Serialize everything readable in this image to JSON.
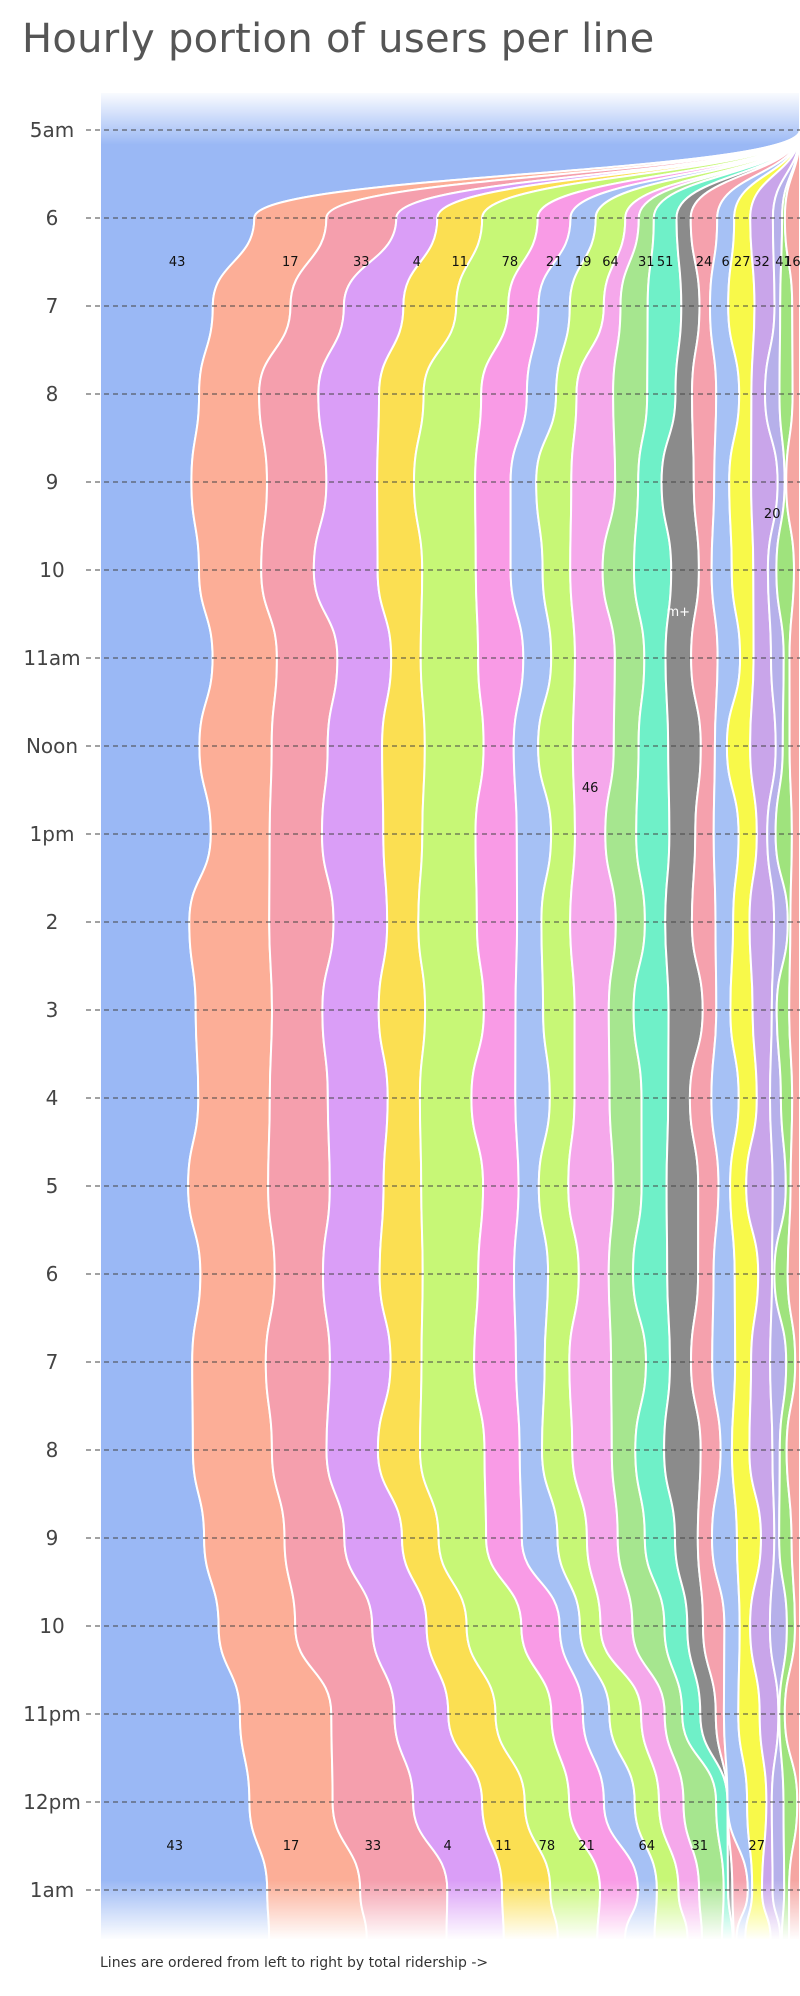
{
  "title": "Hourly portion of users per line",
  "footnote": "Lines are ordered from left to right by total ridership ->",
  "chart_data": {
    "type": "streamgraph",
    "orientation": "vertical",
    "title": "Hourly portion of users per line",
    "hour_labels": [
      "5am",
      "6",
      "7",
      "8",
      "9",
      "10",
      "11am",
      "Noon",
      "1pm",
      "2",
      "3",
      "4",
      "5",
      "6",
      "7",
      "8",
      "9",
      "10",
      "11pm",
      "12pm",
      "1am"
    ],
    "grid_lines": "dashed",
    "series": [
      {
        "name": "43",
        "color": "#9ab8f5",
        "shares": [
          0,
          16,
          12,
          10,
          10,
          10,
          12,
          11,
          11,
          10,
          10,
          10,
          10,
          10,
          10,
          10,
          11,
          14,
          16,
          17,
          20
        ]
      },
      {
        "name": "17",
        "color": "#fcae97",
        "shares": [
          0,
          7,
          8,
          7,
          7,
          7,
          7,
          7,
          7,
          8,
          8,
          8,
          8,
          8,
          8,
          8,
          9,
          9,
          10,
          10,
          11
        ]
      },
      {
        "name": "33",
        "color": "#f59fad",
        "shares": [
          0,
          7,
          6,
          6,
          6,
          6,
          6,
          6,
          6,
          6,
          6,
          6,
          6,
          6,
          6,
          6,
          7,
          8,
          8,
          9,
          10
        ]
      },
      {
        "name": "4",
        "color": "#da9ef7",
        "shares": [
          0,
          5,
          6,
          6,
          6,
          6,
          6,
          6,
          6,
          6,
          6,
          6,
          6,
          6,
          6,
          6,
          6,
          6,
          7,
          7,
          7
        ]
      },
      {
        "name": "11",
        "color": "#fbdf52",
        "shares": [
          0,
          5,
          5,
          5,
          4,
          4,
          4,
          4,
          4,
          4,
          4,
          4,
          4,
          4,
          4,
          4,
          4,
          5,
          5,
          5,
          6
        ]
      },
      {
        "name": "78",
        "color": "#c7f776",
        "shares": [
          0,
          5,
          6,
          6,
          6,
          6,
          6,
          6,
          6,
          6,
          6,
          6,
          6,
          6,
          6,
          6,
          6,
          6,
          6,
          6,
          5
        ]
      },
      {
        "name": "21",
        "color": "#f99be6",
        "shares": [
          0,
          3,
          4,
          4,
          4,
          4,
          4,
          4,
          4,
          4,
          4,
          4,
          4,
          4,
          4,
          4,
          4,
          4,
          4,
          4,
          4
        ]
      },
      {
        "name": "19",
        "color": "#a6c1f5",
        "shares": [
          0,
          3,
          3,
          3,
          3,
          3,
          3,
          3,
          3,
          3,
          3,
          3,
          3,
          3,
          3,
          3,
          3,
          3,
          3,
          3,
          3
        ]
      },
      {
        "name": "64",
        "color": "#c7f776",
        "shares": [
          0,
          3,
          3,
          3,
          3,
          3,
          3,
          3,
          3,
          3,
          3,
          3,
          3,
          3,
          3,
          3,
          3,
          3,
          3,
          3,
          3
        ]
      },
      {
        "name": "46",
        "color": "#f5a8eb",
        "shares": [
          0,
          1,
          2,
          4,
          4,
          4,
          4,
          4,
          4,
          4,
          4,
          4,
          4,
          4,
          4,
          4,
          4,
          3,
          3,
          3,
          2
        ]
      },
      {
        "name": "31",
        "color": "#a6e68f",
        "shares": [
          0,
          2,
          3,
          3,
          3,
          3,
          3,
          3,
          3,
          3,
          3,
          3,
          3,
          3,
          3,
          3,
          3,
          3,
          3,
          3,
          3
        ]
      },
      {
        "name": "51",
        "color": "#6ff0c8",
        "shares": [
          0,
          3,
          3,
          3,
          3,
          3,
          3,
          3,
          3,
          3,
          3,
          3,
          3,
          3,
          3,
          3,
          3,
          3,
          2,
          1,
          1
        ]
      },
      {
        "name": "m+",
        "color": "#8b8b8b",
        "shares": [
          0,
          1,
          2,
          2,
          3,
          3,
          3,
          3,
          3,
          3,
          3,
          3,
          3,
          3,
          3,
          3,
          3,
          2,
          1,
          0,
          0
        ]
      },
      {
        "name": "24",
        "color": "#f5a1ad",
        "shares": [
          0,
          2,
          2,
          2,
          2,
          2,
          2,
          2,
          2,
          2,
          2,
          2,
          2,
          2,
          2,
          2,
          2,
          2,
          1,
          1,
          1
        ]
      },
      {
        "name": "6",
        "color": "#a6c1f5",
        "shares": [
          0,
          2,
          2,
          2,
          2,
          2,
          2,
          2,
          2,
          2,
          2,
          2,
          2,
          2,
          2,
          2,
          2,
          2,
          2,
          2,
          1
        ]
      },
      {
        "name": "27",
        "color": "#f8f94a",
        "shares": [
          0,
          2,
          2,
          2,
          2,
          2,
          2,
          2,
          2,
          2,
          2,
          2,
          2,
          2,
          2,
          2,
          2,
          2,
          2,
          2,
          2
        ]
      },
      {
        "name": "32",
        "color": "#c9a5ea",
        "shares": [
          0,
          2,
          2,
          2,
          2,
          2,
          2,
          2,
          2,
          2,
          2,
          2,
          2,
          2,
          2,
          2,
          2,
          2,
          2,
          1,
          1
        ]
      },
      {
        "name": "20",
        "color": "#b6b0ea",
        "shares": [
          0,
          1,
          1,
          1,
          1,
          1,
          1,
          1,
          1,
          1,
          1,
          1,
          1,
          1,
          1,
          1,
          1,
          1,
          1,
          1,
          1
        ]
      },
      {
        "name": "41",
        "color": "#9fe37d",
        "shares": [
          0,
          1,
          1,
          1,
          1,
          1,
          1,
          1,
          1,
          1,
          1,
          1,
          1,
          1,
          1,
          1,
          1,
          1,
          1,
          1,
          1
        ]
      },
      {
        "name": "16",
        "color": "#f5a6a2",
        "shares": [
          0,
          1,
          1,
          1,
          1,
          1,
          1,
          1,
          1,
          1,
          1,
          1,
          1,
          1,
          1,
          1,
          1,
          1,
          1,
          1,
          1
        ]
      }
    ],
    "labels_near_6_7am": [
      "43",
      "17",
      "33",
      "4",
      "11",
      "78",
      "21",
      "19",
      "64",
      "31",
      "51",
      "24",
      "6",
      "27",
      "32",
      "41",
      "16"
    ],
    "labels_mid_chart": [
      "20",
      "m+",
      "46"
    ],
    "labels_near_12_1am": [
      "43",
      "17",
      "33",
      "4",
      "11",
      "78",
      "21",
      "64",
      "31",
      "27"
    ]
  }
}
